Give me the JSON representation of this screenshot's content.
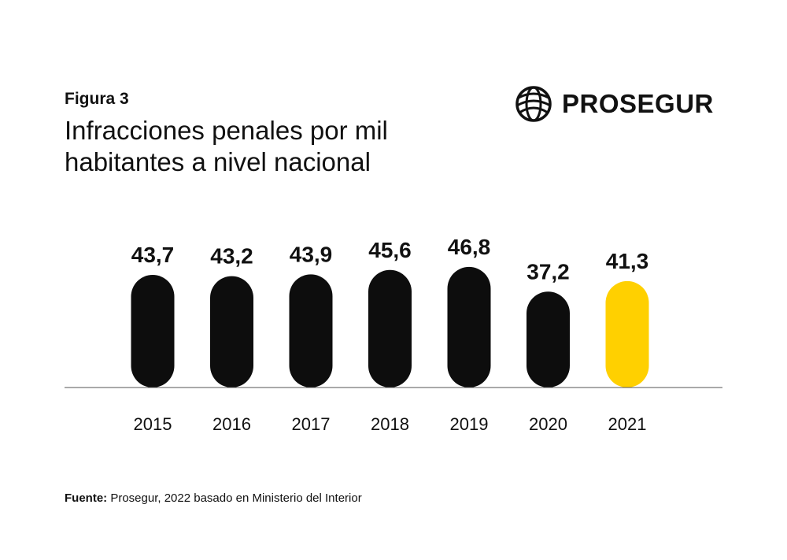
{
  "figure_label": "Figura 3",
  "title": "Infracciones penales por mil habitantes a nivel nacional",
  "logo": {
    "text": "PROSEGUR",
    "icon": "globe-icon"
  },
  "source": {
    "prefix": "Fuente:",
    "text": " Prosegur, 2022 basado en Ministerio del Interior"
  },
  "colors": {
    "bar": "#0d0d0d",
    "highlight": "#ffd000",
    "axis": "#555555"
  },
  "chart_data": {
    "type": "bar",
    "categories": [
      "2015",
      "2016",
      "2017",
      "2018",
      "2019",
      "2020",
      "2021"
    ],
    "values": [
      43.7,
      43.2,
      43.9,
      45.6,
      46.8,
      37.2,
      41.3
    ],
    "value_labels": [
      "43,7",
      "43,2",
      "43,9",
      "45,6",
      "46,8",
      "37,2",
      "41,3"
    ],
    "highlight_category": "2021",
    "title": "Infracciones penales por mil habitantes a nivel nacional",
    "xlabel": "",
    "ylabel": "",
    "grid": false,
    "legend": "none"
  }
}
